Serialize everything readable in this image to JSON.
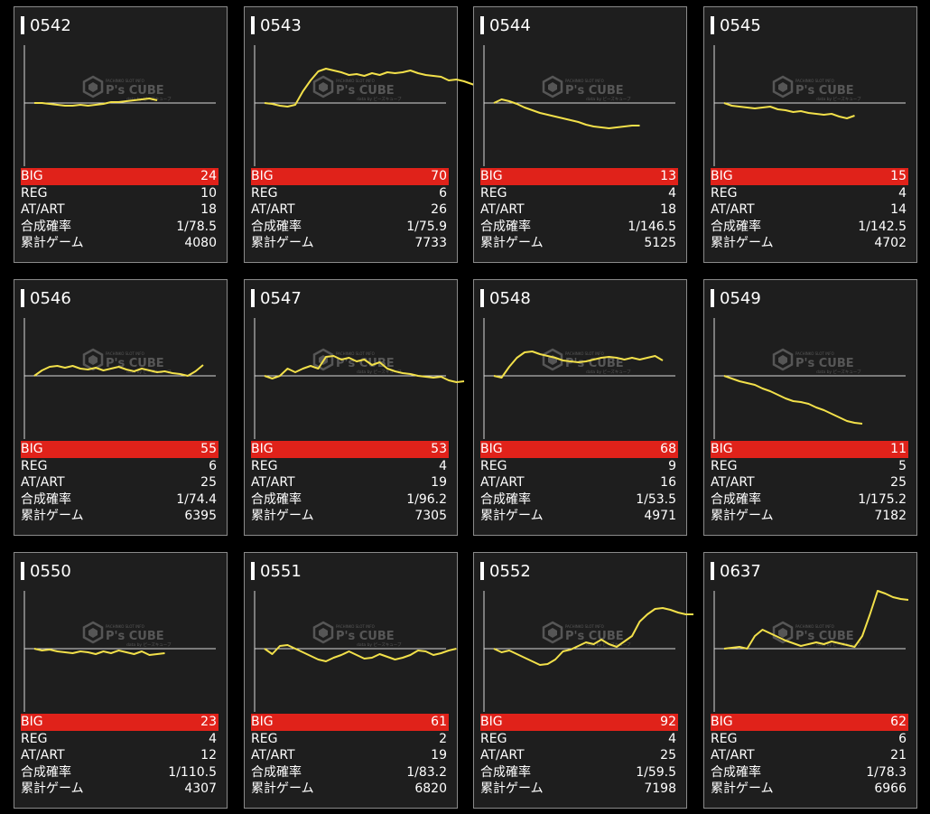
{
  "labels": {
    "big": "BIG",
    "reg": "REG",
    "at_art": "AT/ART",
    "prob": "合成確率",
    "games": "累計ゲーム"
  },
  "watermark": {
    "brand": "P's CUBE",
    "tagline": "PACHINKO SLOT INFO",
    "sub": "data by ピーズキューブ"
  },
  "colors": {
    "big_row": "#e0221a",
    "line": "#f2e04a",
    "panel": "#1e1e1e"
  },
  "machines": [
    {
      "id": "0542",
      "big": "24",
      "reg": "10",
      "at_art": "18",
      "prob": "1/78.5",
      "games": "4080",
      "trend": [
        0,
        0,
        -1,
        -2,
        -3,
        -3,
        -2,
        -3,
        -2,
        -1,
        1,
        1,
        2,
        3,
        4,
        5,
        3
      ]
    },
    {
      "id": "0543",
      "big": "70",
      "reg": "6",
      "at_art": "26",
      "prob": "1/75.9",
      "games": "7733",
      "trend": [
        0,
        -1,
        -3,
        -4,
        -2,
        13,
        25,
        35,
        38,
        36,
        34,
        31,
        32,
        30,
        33,
        31,
        34,
        33,
        34,
        36,
        33,
        31,
        30,
        29,
        25,
        26,
        24,
        21,
        18,
        22,
        27,
        32
      ]
    },
    {
      "id": "0544",
      "big": "13",
      "reg": "4",
      "at_art": "18",
      "prob": "1/146.5",
      "games": "5125",
      "trend": [
        0,
        4,
        2,
        -1,
        -5,
        -8,
        -11,
        -13,
        -15,
        -17,
        -19,
        -21,
        -24,
        -26,
        -27,
        -28,
        -27,
        -26,
        -25,
        -25
      ]
    },
    {
      "id": "0545",
      "big": "15",
      "reg": "4",
      "at_art": "14",
      "prob": "1/142.5",
      "games": "4702",
      "trend": [
        0,
        -3,
        -4,
        -5,
        -6,
        -5,
        -4,
        -7,
        -8,
        -10,
        -9,
        -11,
        -12,
        -13,
        -12,
        -15,
        -17,
        -14
      ]
    },
    {
      "id": "0546",
      "big": "55",
      "reg": "6",
      "at_art": "25",
      "prob": "1/74.4",
      "games": "6395",
      "trend": [
        0,
        6,
        10,
        11,
        9,
        11,
        8,
        7,
        9,
        6,
        8,
        10,
        7,
        5,
        8,
        6,
        4,
        5,
        3,
        2,
        0,
        5,
        12
      ]
    },
    {
      "id": "0547",
      "big": "53",
      "reg": "4",
      "at_art": "19",
      "prob": "1/96.2",
      "games": "7305",
      "trend": [
        0,
        -3,
        0,
        8,
        4,
        8,
        11,
        8,
        21,
        22,
        18,
        20,
        16,
        18,
        12,
        15,
        8,
        5,
        3,
        2,
        0,
        -1,
        -2,
        -1,
        -5,
        -7,
        -6
      ]
    },
    {
      "id": "0548",
      "big": "68",
      "reg": "9",
      "at_art": "16",
      "prob": "1/53.5",
      "games": "4971",
      "trend": [
        0,
        -2,
        10,
        20,
        26,
        27,
        24,
        22,
        20,
        17,
        16,
        15,
        16,
        18,
        20,
        21,
        20,
        18,
        20,
        18,
        20,
        22,
        17
      ]
    },
    {
      "id": "0549",
      "big": "11",
      "reg": "5",
      "at_art": "25",
      "prob": "1/175.2",
      "games": "7182",
      "trend": [
        0,
        -3,
        -6,
        -8,
        -10,
        -14,
        -17,
        -21,
        -25,
        -28,
        -29,
        -31,
        -35,
        -38,
        -42,
        -46,
        -50,
        -52,
        -53
      ]
    },
    {
      "id": "0550",
      "big": "23",
      "reg": "4",
      "at_art": "12",
      "prob": "1/110.5",
      "games": "4307",
      "trend": [
        0,
        -2,
        -1,
        -3,
        -4,
        -5,
        -3,
        -4,
        -6,
        -3,
        -5,
        -2,
        -4,
        -6,
        -3,
        -7,
        -6,
        -5
      ]
    },
    {
      "id": "0551",
      "big": "61",
      "reg": "2",
      "at_art": "19",
      "prob": "1/83.2",
      "games": "6820",
      "trend": [
        0,
        -6,
        3,
        4,
        0,
        -4,
        -8,
        -12,
        -14,
        -10,
        -7,
        -3,
        -7,
        -11,
        -10,
        -6,
        -9,
        -12,
        -10,
        -7,
        -2,
        -3,
        -7,
        -5,
        -2,
        0
      ]
    },
    {
      "id": "0552",
      "big": "92",
      "reg": "4",
      "at_art": "25",
      "prob": "1/59.5",
      "games": "7198",
      "trend": [
        0,
        -4,
        -2,
        -6,
        -10,
        -14,
        -18,
        -17,
        -12,
        -3,
        -1,
        3,
        7,
        5,
        10,
        5,
        2,
        8,
        14,
        30,
        38,
        44,
        45,
        43,
        40,
        38,
        38
      ]
    },
    {
      "id": "0637",
      "big": "62",
      "reg": "6",
      "at_art": "21",
      "prob": "1/78.3",
      "games": "6966",
      "trend": [
        0,
        1,
        2,
        0,
        14,
        21,
        17,
        13,
        9,
        6,
        3,
        5,
        7,
        5,
        8,
        6,
        4,
        2,
        14,
        38,
        64,
        61,
        57,
        55,
        54
      ]
    }
  ]
}
